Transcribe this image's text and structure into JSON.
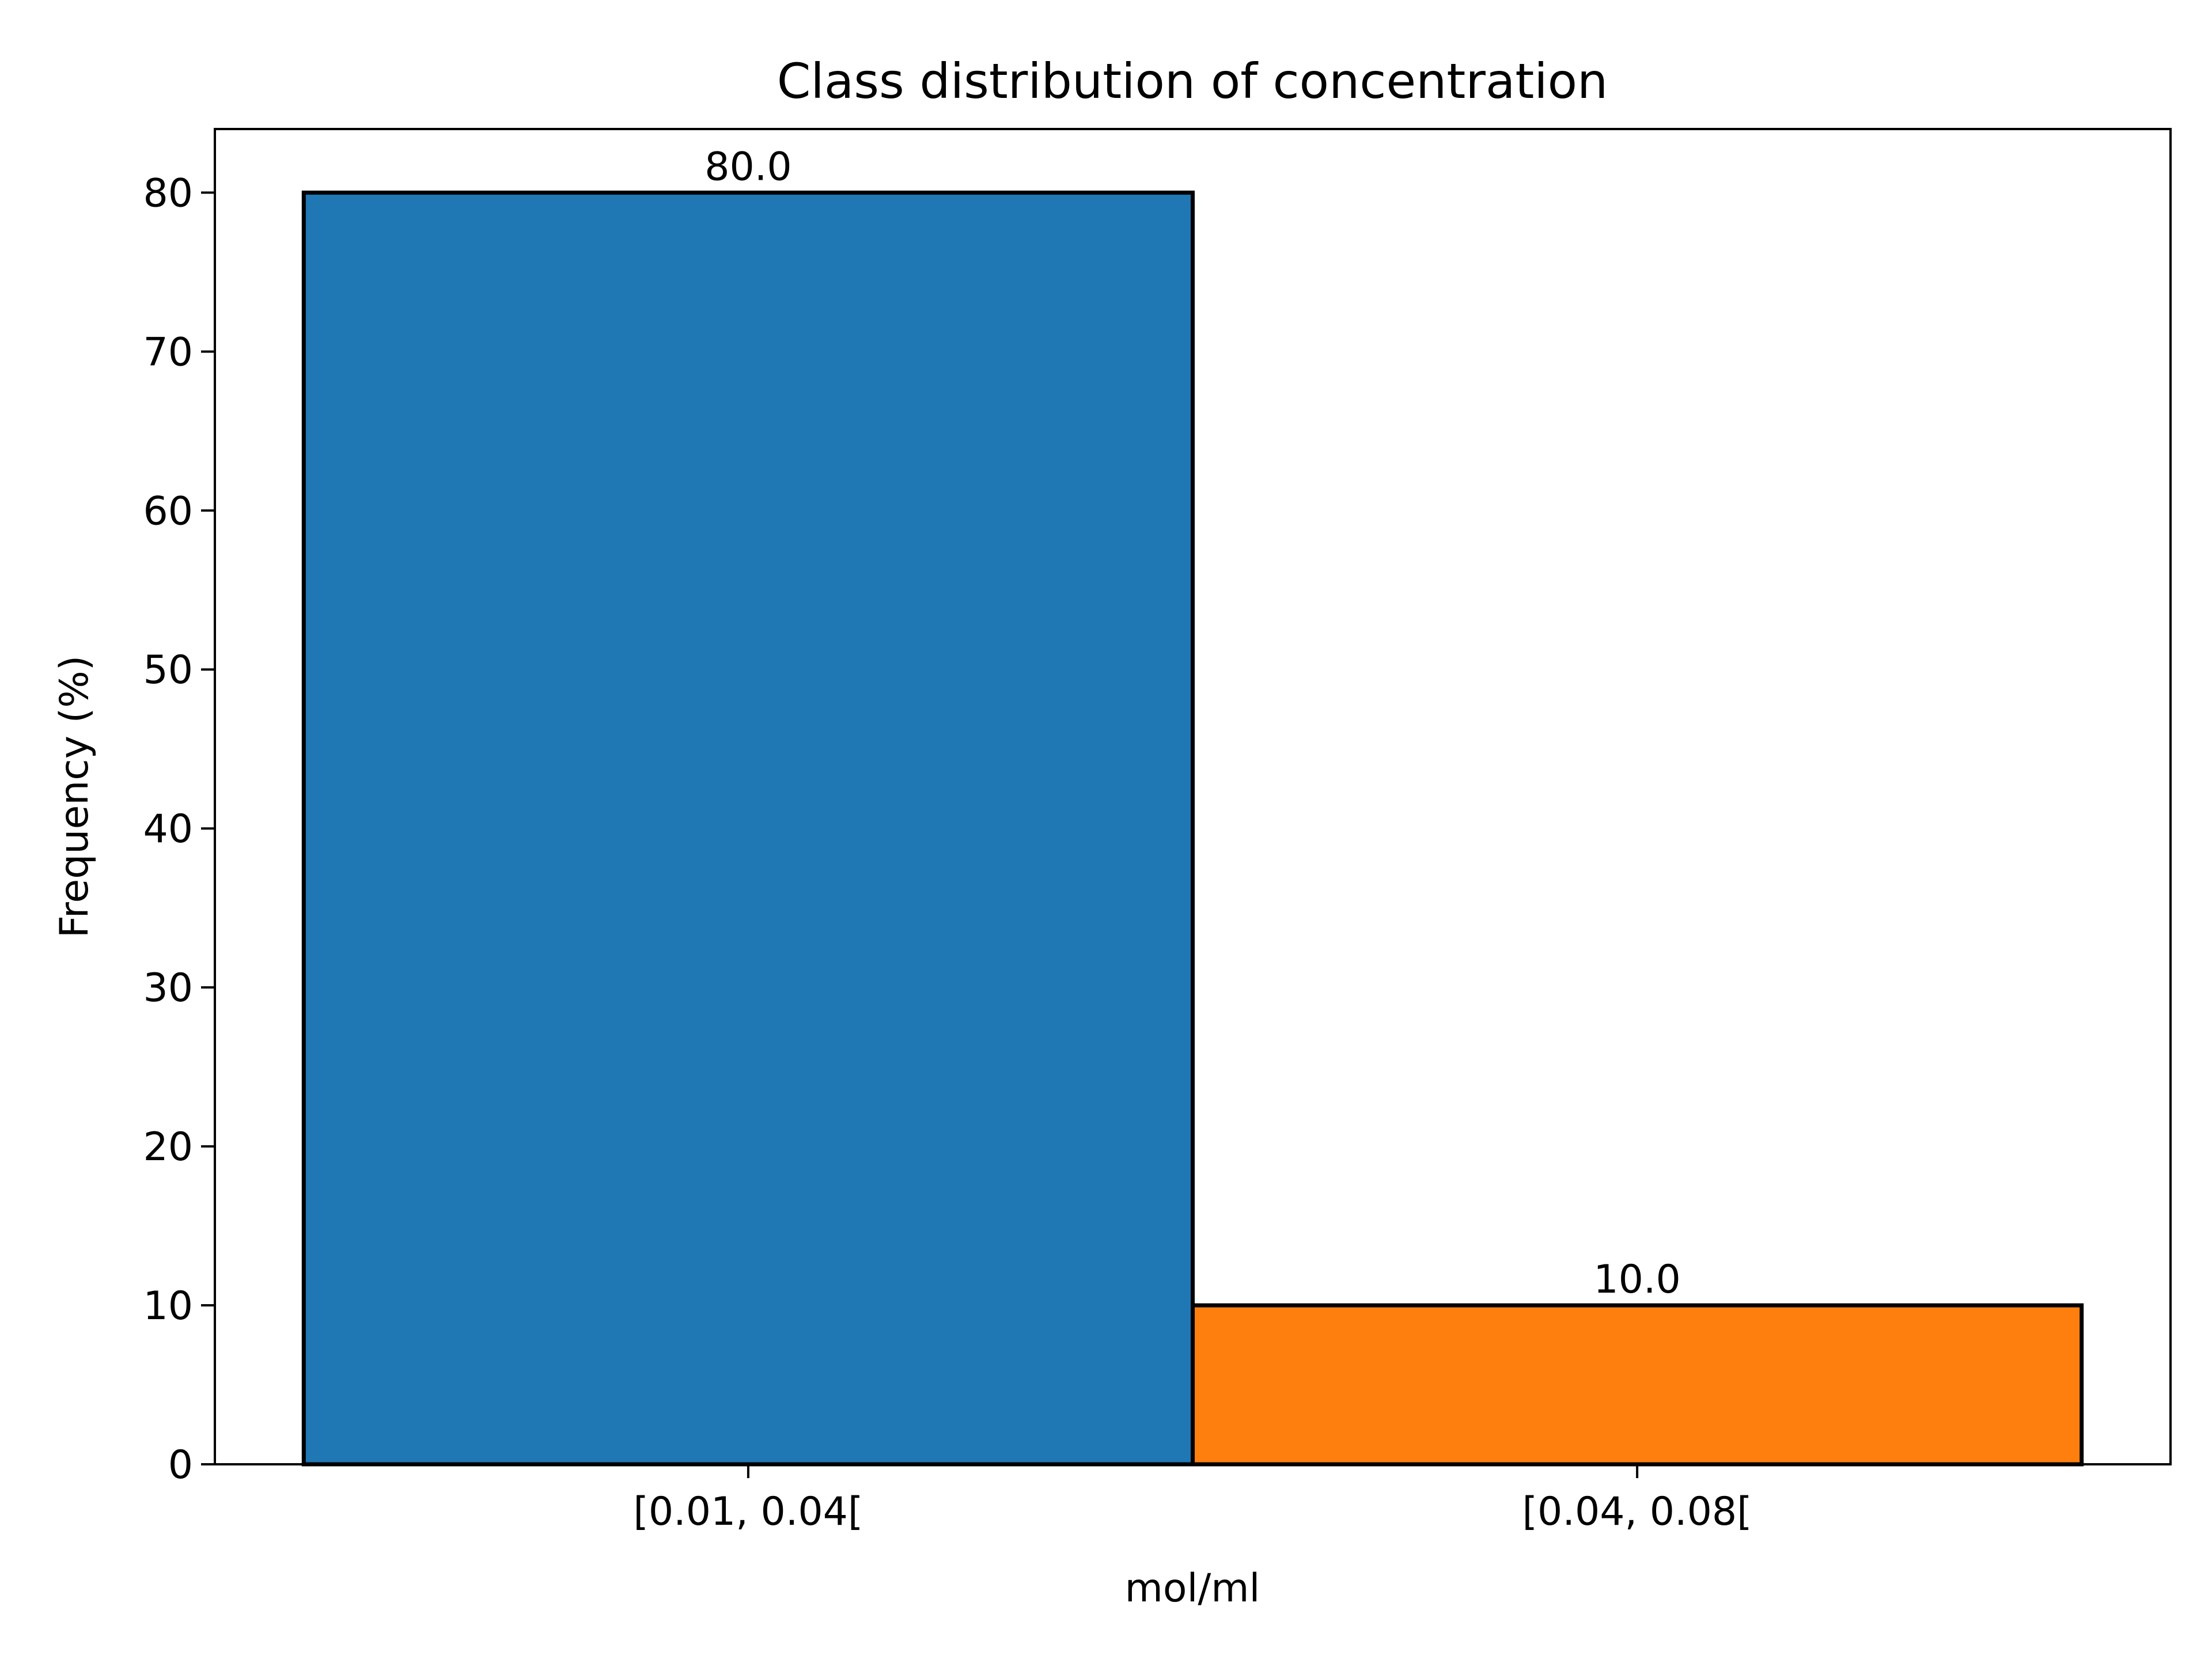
{
  "chart_data": {
    "type": "bar",
    "title": "Class distribution of concentration",
    "xlabel": "mol/ml",
    "ylabel": "Frequency (%)",
    "categories": [
      "[0.01, 0.04[",
      "[0.04, 0.08["
    ],
    "values": [
      80.0,
      10.0
    ],
    "value_labels": [
      "80.0",
      "10.0"
    ],
    "bar_colors": [
      "#1f77b4",
      "#ff7f0e"
    ],
    "ylim": [
      0,
      84
    ],
    "yticks": [
      0,
      10,
      20,
      30,
      40,
      50,
      60,
      70,
      80
    ],
    "grid": false,
    "legend": false
  }
}
